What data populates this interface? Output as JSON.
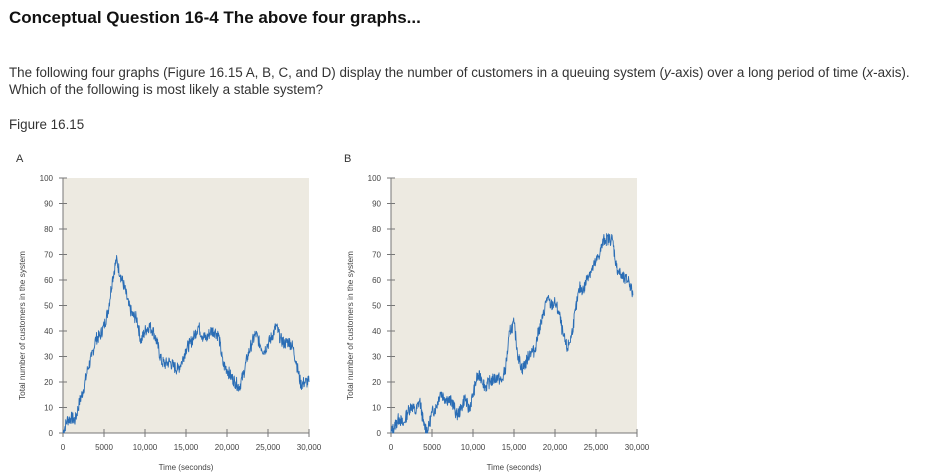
{
  "question": {
    "title": "Conceptual Question 16-4 The above four graphs...",
    "body_parts": [
      "The following four graphs (Figure 16.15 A, B, C, and D) display the number of customers in a queuing system (",
      "y",
      "-axis) over a long period of time (",
      "x",
      "-axis). Which of the following is most likely a stable system?"
    ],
    "figure_label": "Figure 16.15"
  },
  "chart_data": [
    {
      "type": "line",
      "panel_label": "A",
      "xlabel": "Time (seconds)",
      "ylabel": "Total number of customers in the system",
      "xlim": [
        0,
        30000
      ],
      "ylim": [
        0,
        100
      ],
      "xticks": [
        "0",
        "5000",
        "10,000",
        "15,000",
        "20,000",
        "25,000",
        "30,000"
      ],
      "yticks": [
        "0",
        "10",
        "20",
        "30",
        "40",
        "50",
        "60",
        "70",
        "80",
        "90",
        "100"
      ],
      "grid": false,
      "line_color": "#2a6db5",
      "plot_background": "#edeae1",
      "x": [
        0,
        500,
        1000,
        1500,
        2000,
        2500,
        3000,
        3500,
        4000,
        4500,
        5000,
        5500,
        6000,
        6500,
        7000,
        7500,
        8000,
        8500,
        9000,
        9500,
        10000,
        10500,
        11000,
        11500,
        12000,
        12500,
        13000,
        13500,
        14000,
        14500,
        15000,
        15500,
        16000,
        16500,
        17000,
        17500,
        18000,
        18500,
        19000,
        19500,
        20000,
        20500,
        21000,
        21500,
        22000,
        22500,
        23000,
        23500,
        24000,
        24500,
        25000,
        25500,
        26000,
        26500,
        27000,
        27500,
        28000,
        28500,
        29000,
        29500,
        30000
      ],
      "y": [
        0,
        5,
        6,
        5,
        12,
        17,
        25,
        30,
        37,
        38,
        42,
        48,
        60,
        68,
        62,
        57,
        50,
        46,
        45,
        36,
        40,
        42,
        40,
        35,
        28,
        27,
        28,
        26,
        25,
        28,
        33,
        35,
        38,
        42,
        38,
        37,
        40,
        40,
        38,
        27,
        25,
        22,
        20,
        18,
        23,
        30,
        35,
        39,
        35,
        32,
        35,
        38,
        42,
        37,
        35,
        36,
        34,
        27,
        19,
        20,
        20
      ]
    },
    {
      "type": "line",
      "panel_label": "B",
      "xlabel": "Time (seconds)",
      "ylabel": "Total number of customers in the system",
      "xlim": [
        0,
        30000
      ],
      "ylim": [
        0,
        100
      ],
      "xticks": [
        "0",
        "5000",
        "10,000",
        "15,000",
        "20,000",
        "25,000",
        "30,000"
      ],
      "yticks": [
        "0",
        "10",
        "20",
        "30",
        "40",
        "50",
        "60",
        "70",
        "80",
        "90",
        "100"
      ],
      "grid": false,
      "line_color": "#2a6db5",
      "plot_background": "#edeae1",
      "x": [
        0,
        500,
        1000,
        1500,
        2000,
        2500,
        3000,
        3500,
        4000,
        4500,
        5000,
        5500,
        6000,
        6500,
        7000,
        7500,
        8000,
        8500,
        9000,
        9500,
        10000,
        10500,
        11000,
        11500,
        12000,
        12500,
        13000,
        13500,
        14000,
        14500,
        15000,
        15500,
        16000,
        16500,
        17000,
        17500,
        18000,
        18500,
        19000,
        19500,
        20000,
        20500,
        21000,
        21500,
        22000,
        22500,
        23000,
        23500,
        24000,
        24500,
        25000,
        25500,
        26000,
        26500,
        27000,
        27500,
        28000,
        28500,
        29000,
        29500
      ],
      "y": [
        0,
        3,
        6,
        3,
        8,
        11,
        8,
        13,
        3,
        1,
        8,
        10,
        16,
        14,
        13,
        12,
        7,
        9,
        14,
        9,
        15,
        22,
        22,
        18,
        20,
        21,
        22,
        20,
        26,
        40,
        43,
        30,
        25,
        28,
        32,
        32,
        40,
        45,
        53,
        50,
        51,
        47,
        38,
        33,
        38,
        48,
        57,
        56,
        62,
        64,
        67,
        71,
        76,
        76,
        76,
        65,
        62,
        60,
        60,
        54
      ]
    }
  ]
}
